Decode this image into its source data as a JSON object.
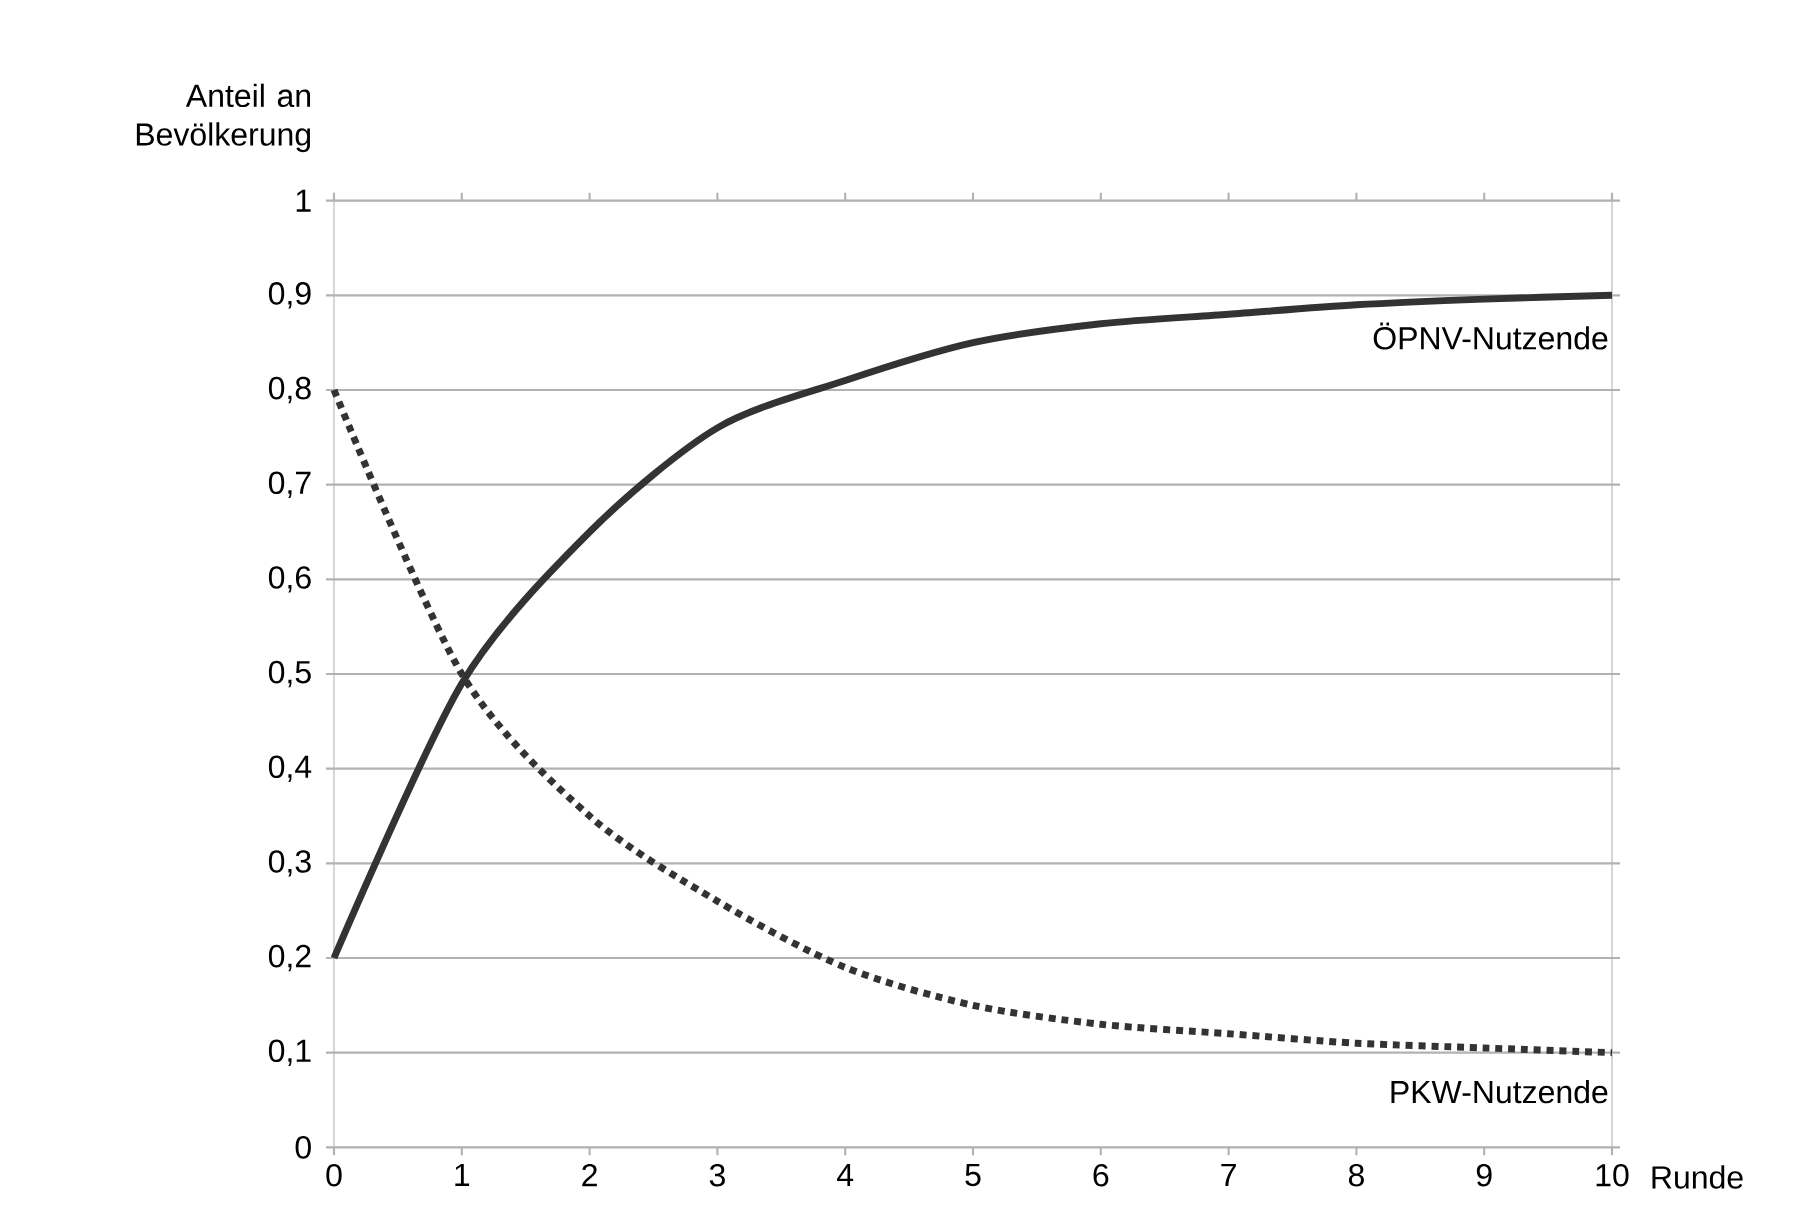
{
  "chart_data": {
    "type": "line",
    "xlabel": "Runde",
    "ylabel": "Anteil an Bevölkerung",
    "x": [
      0,
      1,
      2,
      3,
      4,
      5,
      6,
      7,
      8,
      9,
      10
    ],
    "series": [
      {
        "name": "ÖPNV-Nutzende",
        "color": "#333333",
        "line_style": "solid",
        "values": [
          0.2,
          0.49,
          0.65,
          0.76,
          0.81,
          0.85,
          0.87,
          0.88,
          0.89,
          0.896,
          0.9
        ]
      },
      {
        "name": "PKW-Nutzende",
        "color": "#333333",
        "line_style": "dotted",
        "values": [
          0.8,
          0.5,
          0.35,
          0.26,
          0.19,
          0.15,
          0.13,
          0.12,
          0.11,
          0.105,
          0.1
        ]
      }
    ],
    "xlim": [
      0,
      10
    ],
    "xticks": [
      0,
      1,
      2,
      3,
      4,
      5,
      6,
      7,
      8,
      9,
      10
    ],
    "ylim": [
      0,
      1
    ],
    "yticks": [
      0,
      {
        "value": 0.1,
        "label": "0,1"
      },
      {
        "value": 0.2,
        "label": "0,2"
      },
      {
        "value": 0.3,
        "label": "0,3"
      },
      {
        "value": 0.4,
        "label": "0,4"
      },
      {
        "value": 0.5,
        "label": "0,5"
      },
      {
        "value": 0.6,
        "label": "0,6"
      },
      {
        "value": 0.7,
        "label": "0,7"
      },
      {
        "value": 0.8,
        "label": "0,8"
      },
      {
        "value": 0.9,
        "label": "0,9"
      },
      1
    ],
    "grid": "y",
    "marker": "none"
  }
}
